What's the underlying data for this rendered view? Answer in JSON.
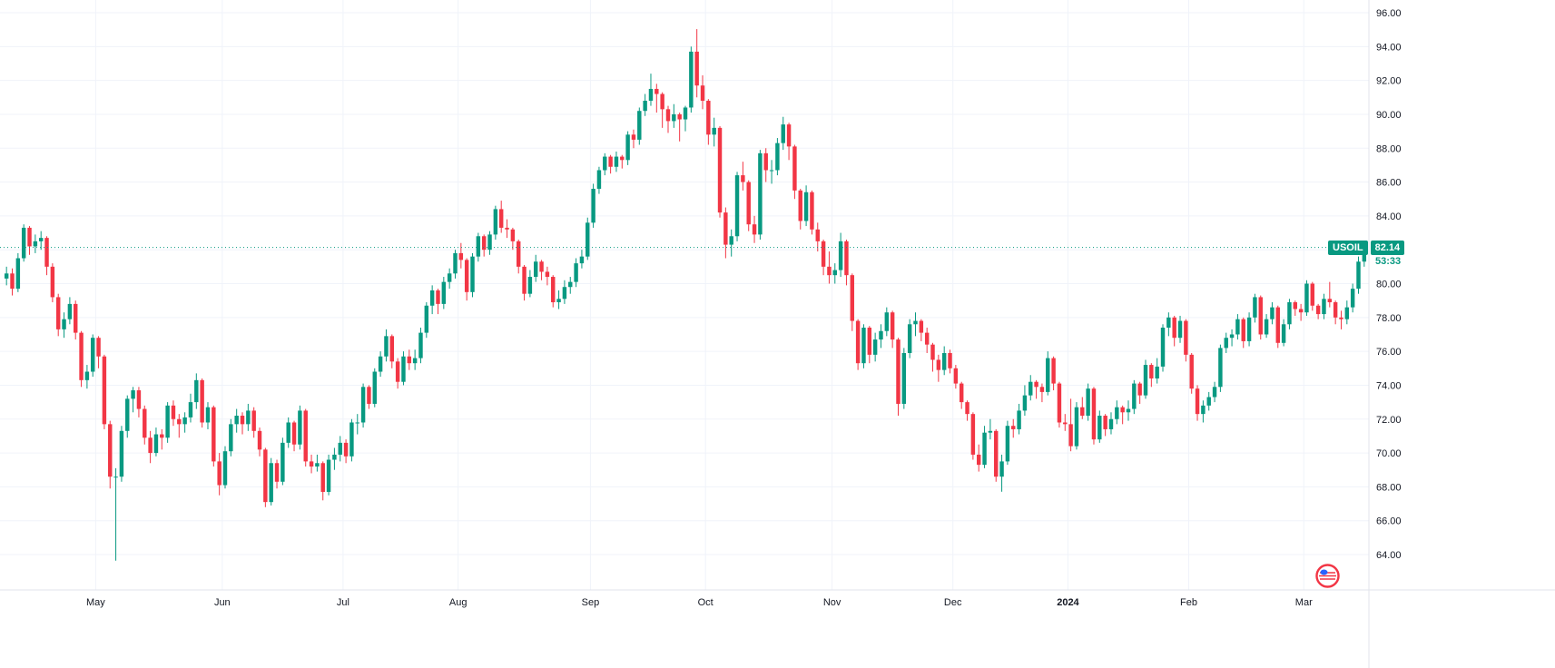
{
  "chart_data": {
    "type": "candlestick",
    "symbol": "USOIL",
    "last_price": "82.14",
    "countdown": "53:33",
    "colors": {
      "up": "#089981",
      "down": "#f23645",
      "grid": "#f0f3fa",
      "border": "#e0e3eb",
      "axis_text": "#131722",
      "last_price_line": "#089981",
      "badge_bg": "#089981",
      "countdown_color": "#089981"
    },
    "price_axis": {
      "min": 64,
      "max": 96,
      "step": 2,
      "tick_labels": [
        "96.00",
        "94.00",
        "92.00",
        "90.00",
        "88.00",
        "86.00",
        "84.00",
        "82.00",
        "80.00",
        "78.00",
        "76.00",
        "74.00",
        "72.00",
        "70.00",
        "68.00",
        "66.00",
        "64.00"
      ]
    },
    "time_axis": {
      "labels": [
        {
          "label": "May",
          "index": 16,
          "bold": false
        },
        {
          "label": "Jun",
          "index": 38,
          "bold": false
        },
        {
          "label": "Jul",
          "index": 59,
          "bold": false
        },
        {
          "label": "Aug",
          "index": 79,
          "bold": false
        },
        {
          "label": "Sep",
          "index": 102,
          "bold": false
        },
        {
          "label": "Oct",
          "index": 122,
          "bold": false
        },
        {
          "label": "Nov",
          "index": 144,
          "bold": false
        },
        {
          "label": "Dec",
          "index": 165,
          "bold": false
        },
        {
          "label": "2024",
          "index": 185,
          "bold": true
        },
        {
          "label": "Feb",
          "index": 206,
          "bold": false
        },
        {
          "label": "Mar",
          "index": 226,
          "bold": false
        }
      ]
    },
    "candles": [
      [
        80.3,
        81.0,
        79.9,
        80.6
      ],
      [
        80.6,
        80.9,
        79.3,
        79.7
      ],
      [
        79.7,
        81.8,
        79.5,
        81.5
      ],
      [
        81.5,
        83.5,
        81.3,
        83.3
      ],
      [
        83.3,
        83.4,
        81.7,
        82.2
      ],
      [
        82.2,
        82.9,
        81.8,
        82.5
      ],
      [
        82.5,
        83.1,
        82.0,
        82.7
      ],
      [
        82.7,
        82.8,
        80.5,
        81.0
      ],
      [
        81.0,
        81.2,
        78.9,
        79.2
      ],
      [
        79.2,
        79.4,
        76.9,
        77.3
      ],
      [
        77.3,
        78.3,
        76.8,
        77.9
      ],
      [
        77.9,
        79.2,
        77.6,
        78.8
      ],
      [
        78.8,
        79.0,
        76.7,
        77.1
      ],
      [
        77.1,
        77.2,
        73.9,
        74.3
      ],
      [
        74.3,
        75.2,
        73.8,
        74.8
      ],
      [
        74.8,
        77.0,
        74.5,
        76.8
      ],
      [
        76.8,
        76.9,
        75.0,
        75.7
      ],
      [
        75.7,
        75.8,
        71.4,
        71.7
      ],
      [
        71.7,
        71.9,
        67.9,
        68.6
      ],
      [
        68.6,
        69.1,
        63.64,
        68.6
      ],
      [
        68.6,
        71.6,
        68.3,
        71.3
      ],
      [
        71.3,
        73.4,
        70.9,
        73.2
      ],
      [
        73.2,
        73.9,
        72.4,
        73.7
      ],
      [
        73.7,
        73.9,
        72.1,
        72.6
      ],
      [
        72.6,
        72.8,
        70.5,
        70.9
      ],
      [
        70.9,
        71.3,
        69.4,
        70.0
      ],
      [
        70.0,
        71.5,
        69.8,
        71.1
      ],
      [
        71.1,
        71.4,
        70.2,
        70.9
      ],
      [
        70.9,
        73.0,
        70.6,
        72.8
      ],
      [
        72.8,
        73.1,
        71.6,
        72.0
      ],
      [
        72.0,
        72.3,
        70.9,
        71.7
      ],
      [
        71.7,
        72.4,
        71.2,
        72.1
      ],
      [
        72.1,
        73.5,
        71.8,
        73.0
      ],
      [
        73.0,
        74.7,
        72.6,
        74.3
      ],
      [
        74.3,
        74.4,
        71.5,
        71.8
      ],
      [
        71.8,
        73.0,
        71.4,
        72.7
      ],
      [
        72.7,
        72.8,
        69.2,
        69.5
      ],
      [
        69.5,
        70.0,
        67.5,
        68.1
      ],
      [
        68.1,
        70.4,
        67.9,
        70.1
      ],
      [
        70.1,
        72.0,
        69.8,
        71.7
      ],
      [
        71.7,
        72.6,
        71.2,
        72.2
      ],
      [
        72.2,
        72.4,
        71.1,
        71.7
      ],
      [
        71.7,
        72.9,
        71.3,
        72.5
      ],
      [
        72.5,
        72.7,
        70.9,
        71.3
      ],
      [
        71.3,
        71.5,
        69.8,
        70.2
      ],
      [
        70.2,
        70.3,
        66.8,
        67.1
      ],
      [
        67.1,
        69.7,
        66.9,
        69.4
      ],
      [
        69.4,
        69.6,
        67.9,
        68.3
      ],
      [
        68.3,
        70.9,
        68.1,
        70.6
      ],
      [
        70.6,
        72.1,
        70.3,
        71.8
      ],
      [
        71.8,
        71.9,
        70.1,
        70.5
      ],
      [
        70.5,
        72.8,
        70.2,
        72.5
      ],
      [
        72.5,
        72.6,
        69.2,
        69.5
      ],
      [
        69.5,
        69.9,
        68.8,
        69.2
      ],
      [
        69.2,
        69.9,
        68.9,
        69.4
      ],
      [
        69.4,
        69.5,
        67.2,
        67.7
      ],
      [
        67.7,
        69.9,
        67.5,
        69.6
      ],
      [
        69.6,
        70.3,
        69.0,
        69.9
      ],
      [
        69.9,
        71.0,
        69.5,
        70.6
      ],
      [
        70.6,
        70.8,
        69.4,
        69.8
      ],
      [
        69.8,
        72.0,
        69.5,
        71.8
      ],
      [
        71.8,
        72.3,
        71.1,
        71.8
      ],
      [
        71.8,
        74.1,
        71.5,
        73.9
      ],
      [
        73.9,
        74.0,
        72.6,
        72.9
      ],
      [
        72.9,
        75.0,
        72.7,
        74.8
      ],
      [
        74.8,
        76.0,
        74.5,
        75.7
      ],
      [
        75.7,
        77.3,
        75.4,
        76.9
      ],
      [
        76.9,
        77.0,
        75.0,
        75.4
      ],
      [
        75.4,
        75.6,
        73.8,
        74.2
      ],
      [
        74.2,
        76.0,
        74.0,
        75.7
      ],
      [
        75.7,
        76.1,
        74.9,
        75.3
      ],
      [
        75.3,
        76.1,
        74.9,
        75.6
      ],
      [
        75.6,
        77.4,
        75.3,
        77.1
      ],
      [
        77.1,
        78.9,
        76.8,
        78.7
      ],
      [
        78.7,
        79.9,
        78.2,
        79.6
      ],
      [
        79.6,
        79.7,
        78.2,
        78.8
      ],
      [
        78.8,
        80.4,
        78.5,
        80.1
      ],
      [
        80.1,
        80.9,
        79.7,
        80.6
      ],
      [
        80.6,
        82.0,
        80.3,
        81.8
      ],
      [
        81.8,
        82.4,
        80.9,
        81.4
      ],
      [
        81.4,
        81.5,
        79.0,
        79.5
      ],
      [
        79.5,
        81.8,
        79.2,
        81.6
      ],
      [
        81.6,
        83.0,
        81.3,
        82.8
      ],
      [
        82.8,
        82.9,
        81.6,
        82.0
      ],
      [
        82.0,
        83.1,
        81.7,
        82.9
      ],
      [
        82.9,
        84.6,
        82.6,
        84.4
      ],
      [
        84.4,
        84.9,
        83.0,
        83.3
      ],
      [
        83.3,
        83.8,
        82.7,
        83.2
      ],
      [
        83.2,
        83.3,
        82.0,
        82.5
      ],
      [
        82.5,
        82.6,
        80.6,
        81.0
      ],
      [
        81.0,
        81.1,
        79.0,
        79.4
      ],
      [
        79.4,
        80.8,
        79.2,
        80.4
      ],
      [
        80.4,
        81.7,
        80.1,
        81.3
      ],
      [
        81.3,
        81.4,
        80.2,
        80.7
      ],
      [
        80.7,
        81.0,
        79.9,
        80.4
      ],
      [
        80.4,
        80.5,
        78.6,
        78.9
      ],
      [
        78.9,
        79.6,
        78.5,
        79.1
      ],
      [
        79.1,
        80.2,
        78.8,
        79.8
      ],
      [
        79.8,
        80.4,
        79.4,
        80.1
      ],
      [
        80.1,
        81.5,
        79.8,
        81.2
      ],
      [
        81.2,
        82.0,
        80.9,
        81.6
      ],
      [
        81.6,
        83.9,
        81.4,
        83.6
      ],
      [
        83.6,
        85.9,
        83.3,
        85.6
      ],
      [
        85.6,
        86.9,
        85.3,
        86.7
      ],
      [
        86.7,
        87.7,
        86.4,
        87.5
      ],
      [
        87.5,
        87.6,
        86.5,
        86.9
      ],
      [
        86.9,
        87.8,
        86.6,
        87.5
      ],
      [
        87.5,
        87.6,
        86.8,
        87.3
      ],
      [
        87.3,
        89.0,
        87.0,
        88.8
      ],
      [
        88.8,
        89.1,
        88.0,
        88.5
      ],
      [
        88.5,
        90.4,
        88.2,
        90.2
      ],
      [
        90.2,
        91.2,
        89.9,
        90.8
      ],
      [
        90.8,
        92.4,
        90.5,
        91.5
      ],
      [
        91.5,
        91.8,
        90.1,
        91.2
      ],
      [
        91.2,
        91.3,
        89.2,
        90.3
      ],
      [
        90.3,
        90.5,
        88.9,
        89.6
      ],
      [
        89.6,
        90.6,
        89.2,
        90.0
      ],
      [
        90.0,
        90.1,
        88.4,
        89.7
      ],
      [
        89.7,
        90.5,
        89.0,
        90.4
      ],
      [
        90.4,
        94.0,
        90.1,
        93.7
      ],
      [
        93.7,
        95.03,
        91.0,
        91.7
      ],
      [
        91.7,
        92.3,
        90.3,
        90.8
      ],
      [
        90.8,
        90.9,
        88.2,
        88.8
      ],
      [
        88.8,
        89.8,
        88.1,
        89.2
      ],
      [
        89.2,
        89.3,
        83.9,
        84.2
      ],
      [
        84.2,
        84.5,
        81.5,
        82.3
      ],
      [
        82.3,
        83.2,
        81.6,
        82.8
      ],
      [
        82.8,
        86.6,
        82.5,
        86.4
      ],
      [
        86.4,
        87.2,
        85.5,
        86.0
      ],
      [
        86.0,
        86.1,
        83.1,
        83.5
      ],
      [
        83.5,
        84.0,
        82.4,
        82.9
      ],
      [
        82.9,
        87.9,
        82.6,
        87.7
      ],
      [
        87.7,
        88.0,
        86.0,
        86.7
      ],
      [
        86.7,
        87.3,
        85.9,
        86.7
      ],
      [
        86.7,
        88.6,
        86.4,
        88.3
      ],
      [
        88.3,
        89.85,
        87.9,
        89.4
      ],
      [
        89.4,
        89.5,
        87.3,
        88.1
      ],
      [
        88.1,
        88.2,
        85.0,
        85.5
      ],
      [
        85.5,
        85.6,
        83.2,
        83.7
      ],
      [
        83.7,
        85.8,
        83.4,
        85.4
      ],
      [
        85.4,
        85.5,
        82.9,
        83.2
      ],
      [
        83.2,
        83.6,
        81.9,
        82.5
      ],
      [
        82.5,
        82.6,
        80.5,
        81.0
      ],
      [
        81.0,
        81.9,
        80.0,
        80.5
      ],
      [
        80.5,
        81.2,
        80.0,
        80.8
      ],
      [
        80.8,
        83.0,
        80.4,
        82.5
      ],
      [
        82.5,
        82.6,
        79.9,
        80.5
      ],
      [
        80.5,
        80.6,
        77.2,
        77.8
      ],
      [
        77.8,
        77.9,
        74.9,
        75.3
      ],
      [
        75.3,
        77.6,
        75.0,
        77.4
      ],
      [
        77.4,
        77.5,
        75.3,
        75.8
      ],
      [
        75.8,
        77.1,
        75.4,
        76.7
      ],
      [
        76.7,
        77.6,
        76.2,
        77.2
      ],
      [
        77.2,
        78.6,
        76.9,
        78.3
      ],
      [
        78.3,
        78.4,
        76.2,
        76.7
      ],
      [
        76.7,
        76.8,
        72.2,
        72.9
      ],
      [
        72.9,
        76.2,
        72.6,
        75.9
      ],
      [
        75.9,
        77.9,
        75.6,
        77.6
      ],
      [
        77.6,
        78.3,
        76.9,
        77.8
      ],
      [
        77.8,
        77.9,
        76.6,
        77.1
      ],
      [
        77.1,
        77.4,
        75.9,
        76.4
      ],
      [
        76.4,
        76.5,
        74.8,
        75.5
      ],
      [
        75.5,
        75.8,
        74.2,
        74.9
      ],
      [
        74.9,
        76.3,
        74.6,
        75.9
      ],
      [
        75.9,
        76.1,
        74.7,
        75.0
      ],
      [
        75.0,
        75.2,
        73.8,
        74.1
      ],
      [
        74.1,
        74.2,
        72.6,
        73.0
      ],
      [
        73.0,
        73.1,
        71.9,
        72.3
      ],
      [
        72.3,
        72.4,
        69.6,
        69.9
      ],
      [
        69.9,
        70.5,
        68.9,
        69.3
      ],
      [
        69.3,
        71.6,
        69.1,
        71.2
      ],
      [
        71.2,
        72.0,
        70.8,
        71.3
      ],
      [
        71.3,
        71.4,
        68.3,
        68.6
      ],
      [
        68.6,
        69.9,
        67.71,
        69.5
      ],
      [
        69.5,
        71.9,
        69.3,
        71.6
      ],
      [
        71.6,
        72.0,
        70.9,
        71.4
      ],
      [
        71.4,
        72.9,
        71.1,
        72.5
      ],
      [
        72.5,
        74.0,
        72.2,
        73.4
      ],
      [
        73.4,
        74.6,
        73.1,
        74.2
      ],
      [
        74.2,
        74.3,
        73.2,
        73.9
      ],
      [
        73.9,
        74.1,
        73.0,
        73.6
      ],
      [
        73.6,
        76.0,
        73.4,
        75.6
      ],
      [
        75.6,
        75.7,
        73.7,
        74.1
      ],
      [
        74.1,
        74.2,
        71.5,
        71.8
      ],
      [
        71.8,
        72.3,
        71.3,
        71.7
      ],
      [
        71.7,
        73.2,
        70.1,
        70.4
      ],
      [
        70.4,
        73.0,
        70.2,
        72.7
      ],
      [
        72.7,
        73.3,
        72.0,
        72.2
      ],
      [
        72.2,
        74.1,
        71.9,
        73.8
      ],
      [
        73.8,
        73.9,
        70.5,
        70.8
      ],
      [
        70.8,
        72.5,
        70.6,
        72.2
      ],
      [
        72.2,
        72.3,
        71.0,
        71.4
      ],
      [
        71.4,
        72.4,
        71.1,
        72.0
      ],
      [
        72.0,
        73.1,
        71.7,
        72.7
      ],
      [
        72.7,
        72.8,
        71.7,
        72.4
      ],
      [
        72.4,
        73.1,
        71.9,
        72.6
      ],
      [
        72.6,
        74.3,
        72.3,
        74.1
      ],
      [
        74.1,
        74.2,
        72.9,
        73.4
      ],
      [
        73.4,
        75.5,
        73.2,
        75.2
      ],
      [
        75.2,
        75.3,
        73.9,
        74.4
      ],
      [
        74.4,
        75.6,
        74.1,
        75.1
      ],
      [
        75.1,
        77.6,
        74.8,
        77.4
      ],
      [
        77.4,
        78.3,
        76.9,
        78.0
      ],
      [
        78.0,
        78.1,
        76.3,
        76.8
      ],
      [
        76.8,
        78.1,
        76.5,
        77.8
      ],
      [
        77.8,
        77.9,
        75.4,
        75.8
      ],
      [
        75.8,
        75.9,
        73.5,
        73.8
      ],
      [
        73.8,
        74.0,
        71.9,
        72.3
      ],
      [
        72.3,
        73.1,
        71.8,
        72.8
      ],
      [
        72.8,
        73.6,
        72.5,
        73.3
      ],
      [
        73.3,
        74.2,
        73.0,
        73.9
      ],
      [
        73.9,
        76.4,
        73.6,
        76.2
      ],
      [
        76.2,
        77.1,
        75.9,
        76.8
      ],
      [
        76.8,
        77.3,
        76.3,
        77.0
      ],
      [
        77.0,
        78.2,
        76.7,
        77.9
      ],
      [
        77.9,
        78.0,
        76.2,
        76.6
      ],
      [
        76.6,
        78.3,
        76.3,
        78.0
      ],
      [
        78.0,
        79.4,
        77.7,
        79.2
      ],
      [
        79.2,
        79.3,
        76.7,
        77.0
      ],
      [
        77.0,
        78.2,
        76.8,
        77.9
      ],
      [
        77.9,
        78.9,
        77.6,
        78.6
      ],
      [
        78.6,
        78.7,
        76.2,
        76.5
      ],
      [
        76.5,
        77.9,
        76.3,
        77.6
      ],
      [
        77.6,
        79.1,
        77.3,
        78.9
      ],
      [
        78.9,
        79.0,
        78.1,
        78.5
      ],
      [
        78.5,
        78.8,
        77.8,
        78.3
      ],
      [
        78.3,
        80.2,
        78.1,
        80.0
      ],
      [
        80.0,
        80.1,
        78.4,
        78.7
      ],
      [
        78.7,
        78.8,
        77.9,
        78.2
      ],
      [
        78.2,
        79.4,
        77.9,
        79.1
      ],
      [
        79.1,
        80.1,
        78.6,
        78.9
      ],
      [
        78.9,
        79.0,
        77.6,
        78.0
      ],
      [
        78.0,
        78.4,
        77.3,
        77.9
      ],
      [
        77.9,
        79.0,
        77.6,
        78.6
      ],
      [
        78.6,
        80.0,
        78.3,
        79.7
      ],
      [
        79.7,
        81.6,
        79.4,
        81.3
      ],
      [
        81.3,
        82.5,
        81.0,
        82.14
      ]
    ]
  }
}
